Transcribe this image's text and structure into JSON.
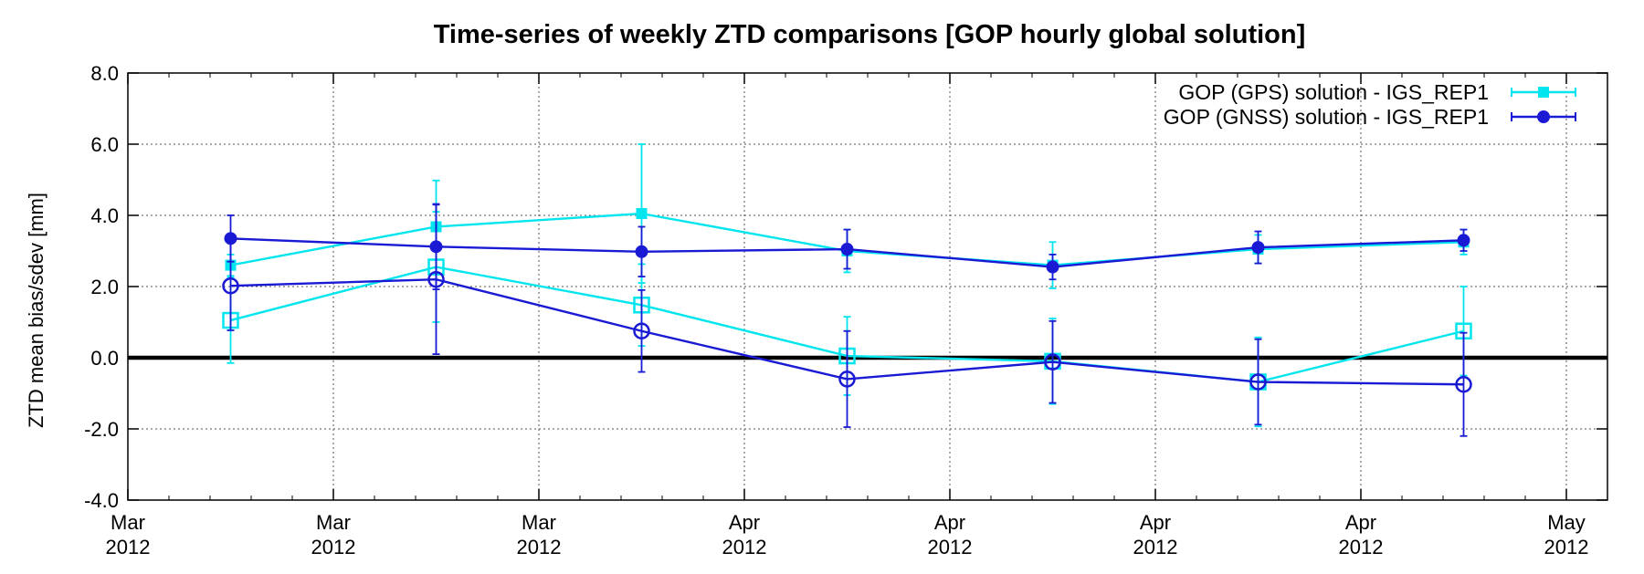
{
  "chart_data": {
    "type": "line",
    "title": "Time-series of weekly ZTD comparisons [GOP hourly global solution]",
    "xlabel": "",
    "ylabel": "ZTD mean bias/sdev [mm]",
    "ylim": [
      -4.0,
      8.0
    ],
    "xlim": [
      "2012-03-01",
      "2012-05-12"
    ],
    "grid": true,
    "legend_position": "top-right",
    "zero_line": true,
    "y_ticks": [
      "-4.0",
      "-2.0",
      "0.0",
      "2.0",
      "4.0",
      "6.0",
      "8.0"
    ],
    "y_tick_values": [
      -4,
      -2,
      0,
      2,
      4,
      6,
      8
    ],
    "x_ticks": [
      {
        "date": "2012-03-01",
        "line1": "Mar",
        "line2": "2012"
      },
      {
        "date": "2012-03-11",
        "line1": "Mar",
        "line2": "2012"
      },
      {
        "date": "2012-03-21",
        "line1": "Mar",
        "line2": "2012"
      },
      {
        "date": "2012-03-31",
        "line1": "Apr",
        "line2": "2012"
      },
      {
        "date": "2012-04-10",
        "line1": "Apr",
        "line2": "2012"
      },
      {
        "date": "2012-04-20",
        "line1": "Apr",
        "line2": "2012"
      },
      {
        "date": "2012-04-30",
        "line1": "Apr",
        "line2": "2012"
      },
      {
        "date": "2012-05-10",
        "line1": "May",
        "line2": "2012"
      }
    ],
    "x": [
      "2012-03-06",
      "2012-03-16",
      "2012-03-26",
      "2012-04-05",
      "2012-04-15",
      "2012-04-25",
      "2012-05-05"
    ],
    "series": [
      {
        "name": "GOP (GPS) solution  - IGS_REP1",
        "color": "#00e5ee",
        "marker": "square",
        "sdev": {
          "values": [
            2.6,
            3.68,
            4.05,
            3.0,
            2.6,
            3.05,
            3.25
          ],
          "err": [
            0.3,
            1.3,
            1.95,
            0.6,
            0.65,
            0.4,
            0.35
          ]
        },
        "bias": {
          "values": [
            1.05,
            2.55,
            1.48,
            0.05,
            -0.1,
            -0.68,
            0.75
          ],
          "err": [
            1.2,
            1.55,
            1.15,
            1.1,
            1.2,
            1.25,
            1.25
          ]
        }
      },
      {
        "name": "GOP (GNSS) solution - IGS_REP1",
        "color": "#1a1ad4",
        "marker": "circle",
        "sdev": {
          "values": [
            3.35,
            3.12,
            2.98,
            3.05,
            2.55,
            3.1,
            3.3
          ],
          "err": [
            0.65,
            1.2,
            0.7,
            0.55,
            0.35,
            0.45,
            0.3
          ]
        },
        "bias": {
          "values": [
            2.02,
            2.2,
            0.75,
            -0.6,
            -0.12,
            -0.68,
            -0.75
          ],
          "err": [
            1.25,
            2.1,
            1.15,
            1.35,
            1.15,
            1.2,
            1.45
          ]
        }
      }
    ]
  }
}
